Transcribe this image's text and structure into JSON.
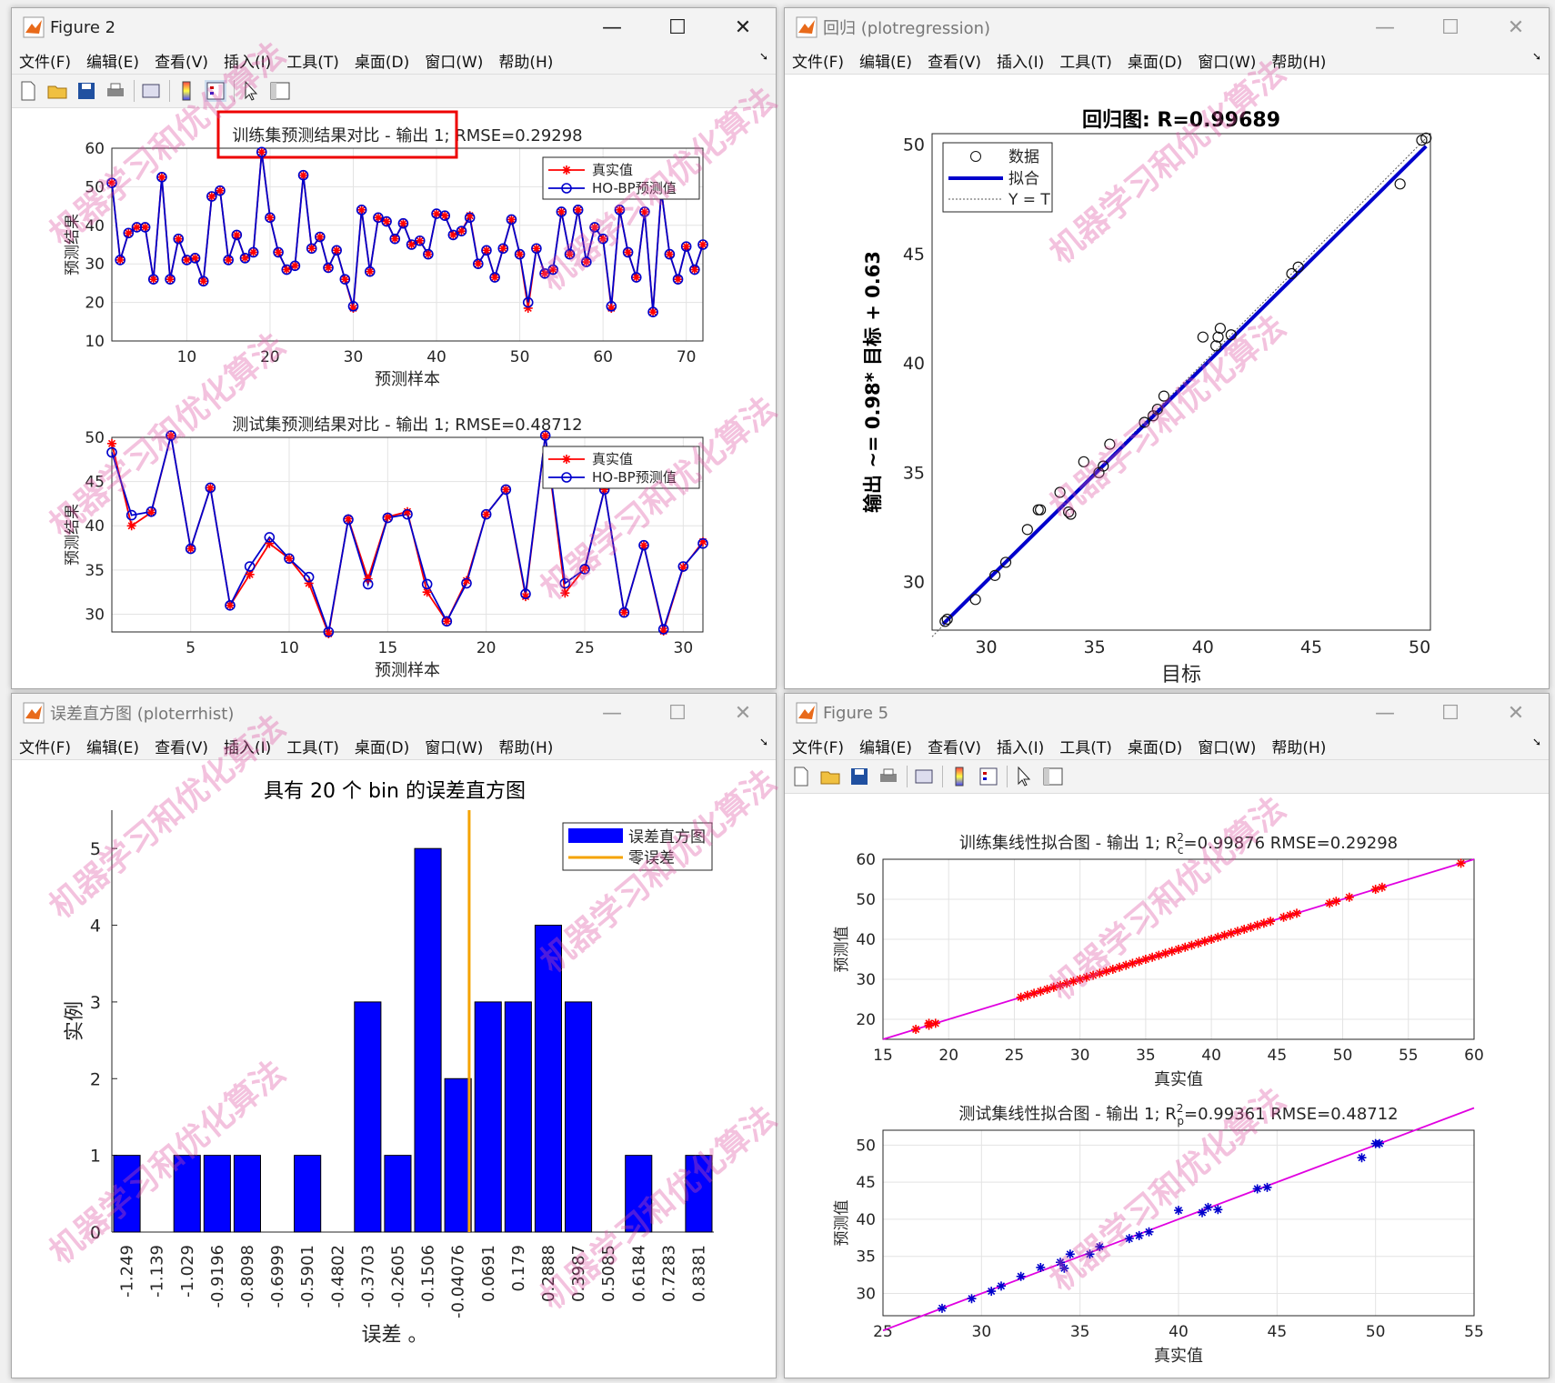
{
  "fig2": {
    "title": "Figure 2",
    "menu": [
      "文件(F)",
      "编辑(E)",
      "查看(V)",
      "插入(I)",
      "工具(T)",
      "桌面(D)",
      "窗口(W)",
      "帮助(H)"
    ],
    "top_title": "训练集预测结果对比 - 输出 1; RMSE=0.29298",
    "bottom_title": "测试集预测结果对比 - 输出 1; RMSE=0.48712",
    "xlabel": "预测样本",
    "ylabel": "预测结果",
    "legend_true": "真实值",
    "legend_pred": "HO-BP预测值",
    "top_yticks": [
      "10",
      "20",
      "30",
      "40",
      "50",
      "60"
    ],
    "top_xticks": [
      "10",
      "20",
      "30",
      "40",
      "50",
      "60",
      "70"
    ],
    "bottom_yticks": [
      "30",
      "35",
      "40",
      "45",
      "50"
    ],
    "bottom_xticks": [
      "5",
      "10",
      "15",
      "20",
      "25",
      "30"
    ]
  },
  "reg": {
    "title": "回归 (plotregression)",
    "menu": [
      "文件(F)",
      "编辑(E)",
      "查看(V)",
      "插入(I)",
      "工具(T)",
      "桌面(D)",
      "窗口(W)",
      "帮助(H)"
    ],
    "plot_title": "回归图: R=0.99689",
    "xlabel": "目标",
    "ylabel": "输出 ~= 0.98* 目标 + 0.63",
    "legend": [
      "数据",
      "拟合",
      "Y = T"
    ],
    "xticks": [
      "30",
      "35",
      "40",
      "45",
      "50"
    ],
    "yticks": [
      "30",
      "35",
      "40",
      "45",
      "50"
    ]
  },
  "hist": {
    "title": "误差直方图 (ploterrhist)",
    "menu": [
      "文件(F)",
      "编辑(E)",
      "查看(V)",
      "插入(I)",
      "工具(T)",
      "桌面(D)",
      "窗口(W)",
      "帮助(H)"
    ],
    "plot_title": "具有 20 个 bin 的误差直方图",
    "xlabel": "误差 。",
    "ylabel": "实例",
    "legend": [
      "误差直方图",
      "零误差"
    ],
    "yticks": [
      "0",
      "1",
      "2",
      "3",
      "4",
      "5"
    ]
  },
  "fig5": {
    "title": "Figure 5",
    "menu": [
      "文件(F)",
      "编辑(E)",
      "查看(V)",
      "插入(I)",
      "工具(T)",
      "桌面(D)",
      "窗口(W)",
      "帮助(H)"
    ],
    "top_title_a": "训练集线性拟合图 - 输出 1; R",
    "top_title_sup": "2",
    "top_title_sub": "c",
    "top_title_b": "=0.99876  RMSE=0.29298",
    "bottom_title_a": "测试集线性拟合图 - 输出 1; R",
    "bottom_title_sup": "2",
    "bottom_title_sub": "p",
    "bottom_title_b": "=0.99361  RMSE=0.48712",
    "xlabel": "真实值",
    "ylabel": "预测值",
    "top_xticks": [
      "15",
      "20",
      "25",
      "30",
      "35",
      "40",
      "45",
      "50",
      "55",
      "60"
    ],
    "top_yticks": [
      "20",
      "30",
      "40",
      "50",
      "60"
    ],
    "bottom_xticks": [
      "25",
      "30",
      "35",
      "40",
      "45",
      "50",
      "55"
    ],
    "bottom_yticks": [
      "30",
      "35",
      "40",
      "45",
      "50"
    ]
  },
  "watermark": "机器学习和优化算法",
  "colors": {
    "true": "#ff0000",
    "pred": "#0000cc",
    "bar": "#0000ff",
    "zero": "#f5a300",
    "fit_line": "#e000e0",
    "reg_fit": "#0000cc"
  },
  "chart_data": [
    {
      "type": "line",
      "title": "训练集预测结果对比 - 输出 1; RMSE=0.29298",
      "xlabel": "预测样本",
      "ylabel": "预测结果",
      "xlim": [
        1,
        72
      ],
      "ylim": [
        10,
        60
      ],
      "x": [
        1,
        2,
        3,
        4,
        5,
        6,
        7,
        8,
        9,
        10,
        11,
        12,
        13,
        14,
        15,
        16,
        17,
        18,
        19,
        20,
        21,
        22,
        23,
        24,
        25,
        26,
        27,
        28,
        29,
        30,
        31,
        32,
        33,
        34,
        35,
        36,
        37,
        38,
        39,
        40,
        41,
        42,
        43,
        44,
        45,
        46,
        47,
        48,
        49,
        50,
        51,
        52,
        53,
        54,
        55,
        56,
        57,
        58,
        59,
        60,
        61,
        62,
        63,
        64,
        65,
        66,
        67,
        68,
        69,
        70,
        71,
        72
      ],
      "series": [
        {
          "name": "真实值",
          "values": [
            51,
            31,
            38,
            39.5,
            39.5,
            26,
            52.5,
            26,
            36.5,
            31,
            31.5,
            25.5,
            47.5,
            49,
            31,
            37.5,
            31.5,
            33,
            59,
            42,
            33,
            28.5,
            29.5,
            53,
            34,
            37,
            29,
            33.5,
            26,
            18.5,
            44,
            28,
            42,
            41,
            36.5,
            40.5,
            35,
            36,
            32.5,
            43,
            42.5,
            37.5,
            38.5,
            42.5,
            30,
            33.5,
            26.5,
            34,
            41.5,
            32.5,
            18.5,
            34,
            27.5,
            28.5,
            43.5,
            32.5,
            44,
            30.5,
            39.5,
            36.5,
            18.5,
            44,
            33,
            26.5,
            43.5,
            17.5,
            49,
            32.5,
            26,
            34.5,
            28.5,
            35
          ]
        },
        {
          "name": "HO-BP预测值",
          "values": [
            51,
            31,
            38,
            39.5,
            39.5,
            26,
            52.5,
            26,
            36.5,
            31,
            31.5,
            25.5,
            47.5,
            49,
            31,
            37.5,
            31.5,
            33,
            59,
            42,
            33,
            28.5,
            29.5,
            53,
            34,
            37,
            29,
            33.5,
            26,
            19,
            44,
            28,
            42,
            41,
            36.5,
            40.5,
            35,
            36,
            32.5,
            43,
            42.5,
            37.5,
            38.5,
            42,
            30,
            33.5,
            26.5,
            34,
            41.5,
            32.5,
            20,
            34,
            27.5,
            28.5,
            43.5,
            32.5,
            44,
            30.5,
            39.5,
            36.5,
            19,
            44,
            33,
            26.5,
            43.5,
            17.5,
            49,
            32.5,
            26,
            34.5,
            28.5,
            35
          ]
        }
      ],
      "legend": "top-right",
      "grid": true
    },
    {
      "type": "line",
      "title": "测试集预测结果对比 - 输出 1; RMSE=0.48712",
      "xlabel": "预测样本",
      "ylabel": "预测结果",
      "xlim": [
        1,
        31
      ],
      "ylim": [
        28,
        50
      ],
      "x": [
        1,
        2,
        3,
        4,
        5,
        6,
        7,
        8,
        9,
        10,
        11,
        12,
        13,
        14,
        15,
        16,
        17,
        18,
        19,
        20,
        21,
        22,
        23,
        24,
        25,
        26,
        27,
        28,
        29,
        30,
        31
      ],
      "series": [
        {
          "name": "真实值",
          "values": [
            49.3,
            40,
            41.5,
            50.2,
            37.4,
            44.3,
            31,
            34.5,
            38,
            36.3,
            33.5,
            27.8,
            40.8,
            34,
            41,
            41.6,
            32.5,
            29.2,
            33.8,
            41.3,
            44.1,
            32,
            50.2,
            32.4,
            35.2,
            44.1,
            30.2,
            37.8,
            28.1,
            35.3,
            38.2
          ]
        },
        {
          "name": "HO-BP预测值",
          "values": [
            48.3,
            41.2,
            41.6,
            50.2,
            37.4,
            44.3,
            31,
            35.4,
            38.7,
            36.3,
            34.2,
            28,
            40.7,
            33.4,
            40.9,
            41.3,
            33.4,
            29.2,
            33.5,
            41.3,
            44.1,
            32.3,
            50.2,
            33.5,
            35.1,
            44.1,
            30.2,
            37.8,
            28.3,
            35.4,
            38
          ]
        }
      ],
      "legend": "top-right",
      "grid": true
    },
    {
      "type": "scatter",
      "title": "回归图: R=0.99689",
      "xlabel": "目标",
      "ylabel": "输出 ~= 0.98* 目标 + 0.63",
      "xlim": [
        27.5,
        50.5
      ],
      "ylim": [
        27.8,
        50.5
      ],
      "x": [
        28.1,
        28.2,
        29.5,
        30.4,
        30.9,
        31.9,
        32.4,
        32.5,
        33.4,
        33.8,
        33.9,
        34.5,
        35.2,
        35.4,
        35.7,
        37.3,
        37.7,
        37.9,
        38.2,
        40,
        40.6,
        40.7,
        40.8,
        41.3,
        44.1,
        44.4,
        49.1,
        50.1,
        50.3
      ],
      "y": [
        28.2,
        28.3,
        29.2,
        30.3,
        30.9,
        32.4,
        33.3,
        33.3,
        34.1,
        33.2,
        33.1,
        35.5,
        35,
        35.3,
        36.3,
        37.3,
        37.6,
        37.9,
        38.5,
        41.2,
        40.8,
        41.2,
        41.6,
        41.3,
        44.1,
        44.4,
        48.2,
        50.2,
        50.3
      ],
      "fit": {
        "slope": 0.98,
        "intercept": 0.63
      },
      "legend": "top-left",
      "grid": false
    },
    {
      "type": "bar",
      "title": "具有 20 个 bin 的误差直方图",
      "xlabel": "误差 。",
      "ylabel": "实例",
      "categories": [
        "-1.249",
        "-1.139",
        "-1.029",
        "-0.9196",
        "-0.8098",
        "-0.6999",
        "-0.5901",
        "-0.4802",
        "-0.3703",
        "-0.2605",
        "-0.1506",
        "-0.04076",
        "0.0691",
        "0.179",
        "0.2888",
        "0.3987",
        "0.5085",
        "0.6184",
        "0.7283",
        "0.8381"
      ],
      "values": [
        1,
        0,
        1,
        1,
        1,
        0,
        1,
        0,
        3,
        1,
        5,
        2,
        3,
        3,
        4,
        3,
        0,
        1,
        0,
        1
      ],
      "zero_error": 0,
      "ylim": [
        0,
        5.5
      ],
      "legend": "top-right"
    },
    {
      "type": "scatter",
      "title": "训练集线性拟合图 - 输出 1; Rc2=0.99876  RMSE=0.29298",
      "xlabel": "真实值",
      "ylabel": "预测值",
      "xlim": [
        15,
        60
      ],
      "ylim": [
        15,
        60
      ],
      "x": [
        17.5,
        18.5,
        18.5,
        19,
        25.5,
        26,
        26.5,
        27,
        27.5,
        28,
        28.5,
        29,
        29.5,
        30,
        30.5,
        31,
        31.5,
        32,
        32.5,
        33,
        33.5,
        34,
        34.5,
        35,
        35.5,
        36,
        36.5,
        37,
        37.5,
        38,
        38.5,
        39,
        39.5,
        40,
        40.5,
        41,
        41.5,
        42,
        42.5,
        43,
        43.5,
        44,
        44.5,
        45.5,
        46,
        46.5,
        49,
        49.5,
        50.5,
        52.5,
        53,
        59
      ],
      "y": [
        17.5,
        19,
        18.5,
        19,
        25.5,
        26,
        26.5,
        27,
        27.5,
        28,
        28.5,
        29,
        29.5,
        30,
        30.5,
        31,
        31.5,
        32,
        32.5,
        33,
        33.5,
        34,
        34.5,
        35,
        35.5,
        36,
        36.5,
        37,
        37.5,
        38,
        38.5,
        39,
        39.5,
        40,
        40.5,
        41,
        41.5,
        42,
        42.5,
        43,
        43.5,
        44,
        44.5,
        45.5,
        46,
        46.5,
        49,
        49.5,
        50.5,
        52.5,
        53,
        59
      ],
      "grid": true
    },
    {
      "type": "scatter",
      "title": "测试集线性拟合图 - 输出 1; Rp2=0.99361  RMSE=0.48712",
      "xlabel": "真实值",
      "ylabel": "预测值",
      "xlim": [
        25,
        55
      ],
      "ylim": [
        27,
        52
      ],
      "x": [
        28,
        29.5,
        30.5,
        31,
        32,
        33,
        34,
        34.2,
        34.5,
        35.5,
        36,
        37.5,
        38,
        38.5,
        40,
        41.2,
        41.5,
        42,
        44,
        44.5,
        49.3,
        50,
        50.2
      ],
      "y": [
        28,
        29.3,
        30.3,
        31,
        32.3,
        33.5,
        34.2,
        33.4,
        35.3,
        35.3,
        36.3,
        37.4,
        37.8,
        38.3,
        41.2,
        40.9,
        41.6,
        41.3,
        44.1,
        44.3,
        48.3,
        50.2,
        50.2
      ],
      "grid": true
    }
  ]
}
